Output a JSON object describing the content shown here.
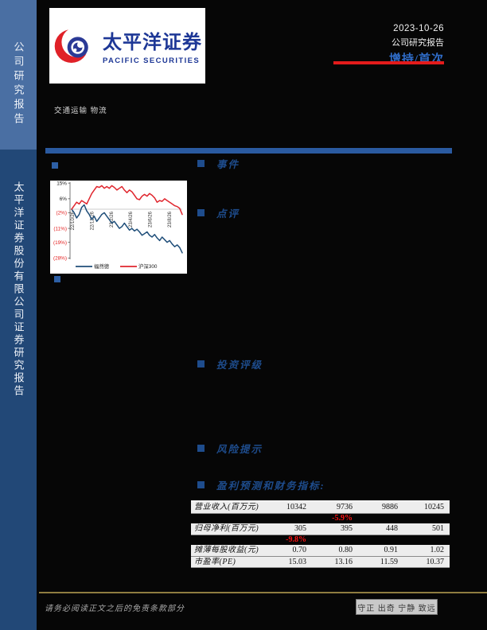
{
  "sidebar": {
    "top_label": "公司研究报告",
    "bottom_label": "太平洋证券股份有限公司证券研究报告"
  },
  "logo": {
    "name_cn": "太平洋证券",
    "name_en": "PACIFIC SECURITIES"
  },
  "header": {
    "date": "2023-10-26",
    "report_type": "公司研究报告",
    "rating": "增持/首次"
  },
  "industry": "交通运输 物流",
  "sections": {
    "event": "事件",
    "comment": "点评",
    "rating": "投资评级",
    "risk": "风险提示",
    "forecast": "盈利预测和财务指标:"
  },
  "chart_data": {
    "type": "line",
    "title": "",
    "xlabel": "",
    "ylabel": "",
    "x_tick_labels": [
      "22/10/26",
      "22/12/26",
      "23/2/26",
      "23/4/26",
      "23/6/26",
      "23/8/26"
    ],
    "y_ticks": [
      15,
      6,
      -2,
      -11,
      -19,
      -28
    ],
    "y_tick_labels": [
      "15%",
      "6%",
      "(2%)",
      "(11%)",
      "(19%)",
      "(28%)"
    ],
    "ylim": [
      -30,
      17
    ],
    "zero_line": true,
    "grid": false,
    "legend_position": "bottom",
    "series": [
      {
        "name": "福然德",
        "color": "#1f4e79",
        "values": [
          0,
          -2,
          -5,
          -3,
          1,
          2.5,
          -1,
          -3,
          -6,
          -4,
          -7,
          -5,
          -3,
          -2,
          -4,
          -6,
          -8,
          -7,
          -9,
          -11,
          -10,
          -8,
          -10,
          -12,
          -11,
          -12.5,
          -11.5,
          -13,
          -15,
          -14,
          -13,
          -15,
          -16,
          -14.5,
          -16.5,
          -18,
          -16,
          -17.5,
          -19,
          -18,
          -20,
          -21.5,
          -20.5,
          -22,
          -25
        ]
      },
      {
        "name": "沪深300",
        "color": "#e0262e",
        "values": [
          0,
          2,
          4,
          3,
          5,
          4,
          3,
          6,
          9,
          11,
          13,
          12.5,
          13.5,
          12,
          13,
          12,
          13.5,
          12.5,
          11,
          12,
          13,
          11,
          9.5,
          11,
          10,
          8,
          6,
          5.5,
          7.5,
          8.5,
          7.5,
          9,
          8,
          6.5,
          4,
          5,
          4.5,
          6,
          5,
          4,
          3,
          2,
          1.5,
          0.5,
          -3
        ]
      }
    ]
  },
  "table": {
    "rows": [
      {
        "type": "data",
        "label": "营业收入(百万元)",
        "values": [
          "10342",
          "9736",
          "9886",
          "10245"
        ]
      },
      {
        "type": "growth",
        "label": "",
        "values": [
          "",
          "-5.9%",
          "",
          ""
        ]
      },
      {
        "type": "data",
        "label": "归母净利(百万元)",
        "values": [
          "305",
          "395",
          "448",
          "501"
        ]
      },
      {
        "type": "growth",
        "label": "",
        "values": [
          "-9.8%",
          "",
          "",
          ""
        ]
      },
      {
        "type": "data",
        "label": "摊薄每股收益(元)",
        "values": [
          "0.70",
          "0.80",
          "0.91",
          "1.02"
        ]
      },
      {
        "type": "data",
        "label": "市盈率(PE)",
        "values": [
          "15.03",
          "13.16",
          "11.59",
          "10.37"
        ]
      }
    ]
  },
  "footer": {
    "disclaimer": "请务必阅读正文之后的免责条款部分",
    "motto": "守正 出奇 宁静 致远"
  },
  "colors": {
    "page_bg": "#060606",
    "sidebar_top": "#4a6fa3",
    "sidebar_bottom": "#224877",
    "divider_blue": "#2a5aa0",
    "heading_navy": "#1e4c8c",
    "rating_blue": "#2f6cc8",
    "accent_red": "#e31b1b",
    "table_row_bg": "#ededed",
    "growth_red": "#ff1414",
    "footer_gold": "#8f7c40",
    "logo_navy": "#1d3796",
    "logo_red": "#e02128"
  }
}
